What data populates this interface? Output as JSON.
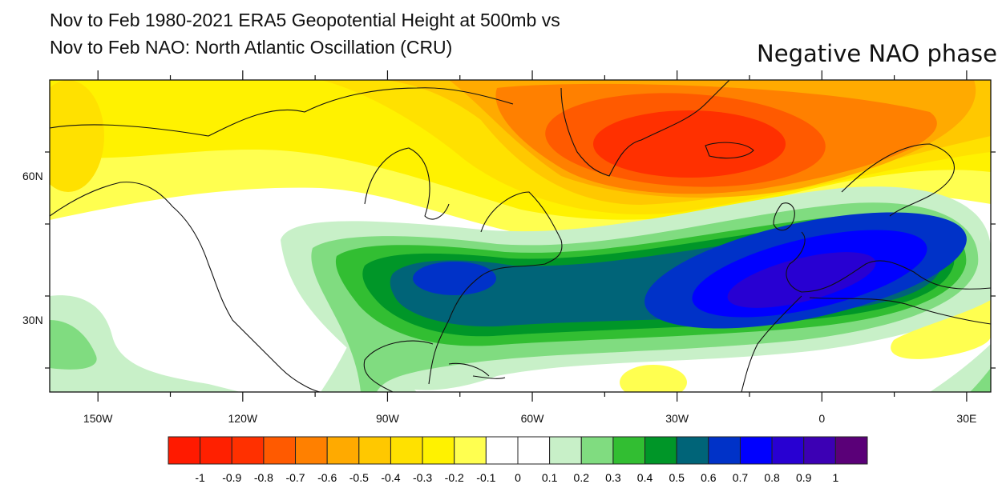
{
  "title": {
    "line1": "Nov to Feb 1980-2021 ERA5 Geopotential Height at 500mb vs",
    "line2": "Nov to Feb NAO: North Atlantic Oscillation (CRU)"
  },
  "annotation": "Negative NAO phase",
  "map": {
    "projection": "cylindrical equidistant",
    "lon_range": [
      -160,
      35
    ],
    "lat_range": [
      15,
      80
    ],
    "lon_labels": [
      {
        "lon": -150,
        "text": "150W"
      },
      {
        "lon": -120,
        "text": "120W"
      },
      {
        "lon": -90,
        "text": "90W"
      },
      {
        "lon": -60,
        "text": "60W"
      },
      {
        "lon": -30,
        "text": "30W"
      },
      {
        "lon": 0,
        "text": "0"
      },
      {
        "lon": 30,
        "text": "30E"
      }
    ],
    "lat_labels": [
      {
        "lat": 60,
        "text": "60N"
      },
      {
        "lat": 30,
        "text": "30N"
      }
    ],
    "features": [
      "negative correlation center over Greenland/Iceland (about -0.9)",
      "positive correlation band from eastern US to Iberia/Mediterranean (up to about 0.8)"
    ]
  },
  "colorbar": {
    "labels": [
      "-1",
      "-0.9",
      "-0.8",
      "-0.7",
      "-0.6",
      "-0.5",
      "-0.4",
      "-0.3",
      "-0.2",
      "-0.1",
      "0",
      "0.1",
      "0.2",
      "0.3",
      "0.4",
      "0.5",
      "0.6",
      "0.7",
      "0.8",
      "0.9",
      "1"
    ],
    "colors": [
      "#ff1a00",
      "#ff2000",
      "#ff3000",
      "#ff5a00",
      "#ff8000",
      "#ffaa00",
      "#ffc800",
      "#ffe100",
      "#fff200",
      "#ffff50",
      "#ffffff",
      "#ffffff",
      "#c8f0c8",
      "#80dc80",
      "#32be32",
      "#009628",
      "#006478",
      "#0032c8",
      "#0000ff",
      "#2800d2",
      "#3c00b4",
      "#5a0078"
    ]
  }
}
